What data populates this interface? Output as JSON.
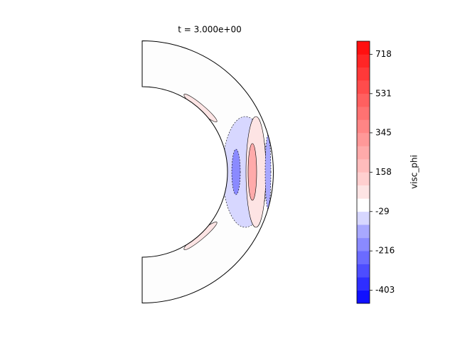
{
  "chart_data": {
    "type": "contour",
    "title": "t = 3.000e+00",
    "colorbar_label": "visc_phi",
    "clim": [
      -465,
      780
    ],
    "levels": [
      -465,
      -403,
      -341,
      -278,
      -216,
      -154,
      -91,
      -29,
      33,
      96,
      158,
      220,
      282,
      345,
      407,
      469,
      531,
      594,
      656,
      718,
      780
    ],
    "colors": [
      "#1010ff",
      "#2e2eff",
      "#4d4dff",
      "#6b6bff",
      "#8a8aff",
      "#a8a8ff",
      "#d7d7ff",
      "#ffffff",
      "#fde4e4",
      "#ffcfcf",
      "#ffbcbc",
      "#ffaaaa",
      "#ff9898",
      "#ff8585",
      "#ff7272",
      "#ff6060",
      "#ff4c4c",
      "#ff3939",
      "#ff2626",
      "#ff1010"
    ],
    "colorbar_ticks": [
      -403,
      -216,
      -29,
      158,
      345,
      531,
      718
    ]
  }
}
